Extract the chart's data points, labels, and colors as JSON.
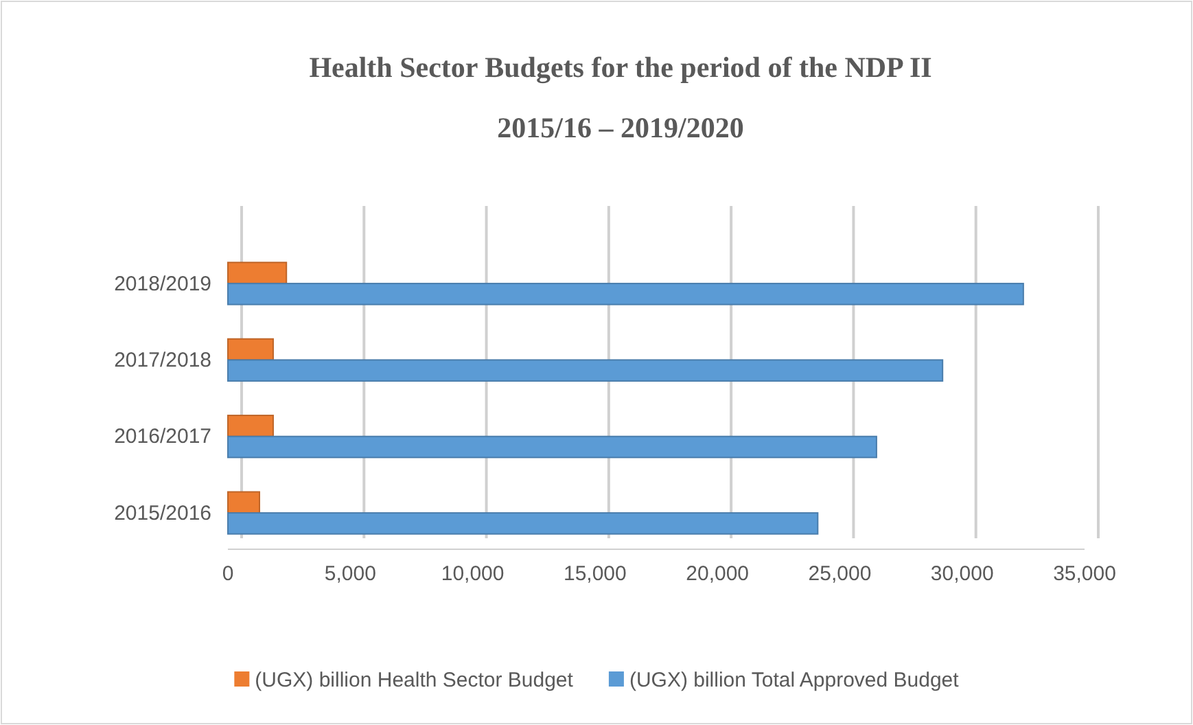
{
  "chart_data": {
    "type": "bar",
    "orientation": "horizontal",
    "title": "Health Sector Budgets for the period of the NDP II",
    "subtitle": "2015/16 – 2019/2020",
    "categories": [
      "2018/2019",
      "2017/2018",
      "2016/2017",
      "2015/2016"
    ],
    "series": [
      {
        "name": "(UGX) billion Health Sector Budget",
        "color": "#ed7d31",
        "values": [
          2390,
          1850,
          1850,
          1290
        ]
      },
      {
        "name": "(UGX) billion Total Approved Budget",
        "color": "#5b9bd5",
        "values": [
          32500,
          29200,
          26500,
          24100
        ]
      }
    ],
    "xlim": [
      0,
      35000
    ],
    "xticks": [
      {
        "value": 0,
        "label": "0"
      },
      {
        "value": 5000,
        "label": "5,000"
      },
      {
        "value": 10000,
        "label": "10,000"
      },
      {
        "value": 15000,
        "label": "15,000"
      },
      {
        "value": 20000,
        "label": "20,000"
      },
      {
        "value": 25000,
        "label": "25,000"
      },
      {
        "value": 30000,
        "label": "30,000"
      },
      {
        "value": 35000,
        "label": "35,000"
      }
    ],
    "grid": "x",
    "legend": "bottom"
  }
}
